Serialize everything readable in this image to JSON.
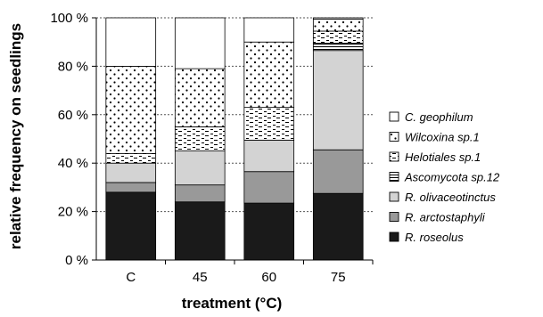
{
  "chart_data": {
    "type": "bar",
    "stacked": true,
    "normalized_percent": true,
    "categories": [
      "C",
      "45",
      "60",
      "75"
    ],
    "xlabel": "treatment (°C)",
    "ylabel": "relative frequency on seedlings",
    "ylim": [
      0,
      100
    ],
    "y_ticks": [
      "0 %",
      "20 %",
      "40 %",
      "60 %",
      "80 %",
      "100 %"
    ],
    "grid": "horizontal dotted",
    "legend_position": "right",
    "series": [
      {
        "name": "R. roseolus",
        "values": [
          28,
          24,
          23.5,
          27.5
        ],
        "color": "#1a1a1a",
        "pattern": "solid-black"
      },
      {
        "name": "R. arctostaphyli",
        "values": [
          4,
          7,
          13,
          18
        ],
        "color": "#999999",
        "pattern": "solid-gray"
      },
      {
        "name": "R. olivaceotinctus",
        "values": [
          8,
          14,
          13,
          41
        ],
        "color": "#d3d3d3",
        "pattern": "solid-lightgray"
      },
      {
        "name": "Ascomycota sp.12",
        "values": [
          0,
          0,
          0,
          3
        ],
        "color": "#ffffff",
        "pattern": "horizontal-lines"
      },
      {
        "name": "Helotiales sp.1",
        "values": [
          4,
          10,
          13.5,
          5
        ],
        "color": "#ffffff",
        "pattern": "dashes"
      },
      {
        "name": "Wilcoxina sp.1",
        "values": [
          36,
          24,
          27,
          5
        ],
        "color": "#ffffff",
        "pattern": "dots"
      },
      {
        "name": "C. geophilum",
        "values": [
          20,
          21,
          10,
          0.5
        ],
        "color": "#ffffff",
        "pattern": "none"
      }
    ],
    "legend_order": [
      "C. geophilum",
      "Wilcoxina sp.1",
      "Helotiales sp.1",
      "Ascomycota sp.12",
      "R. olivaceotinctus",
      "R. arctostaphyli",
      "R. roseolus"
    ]
  }
}
